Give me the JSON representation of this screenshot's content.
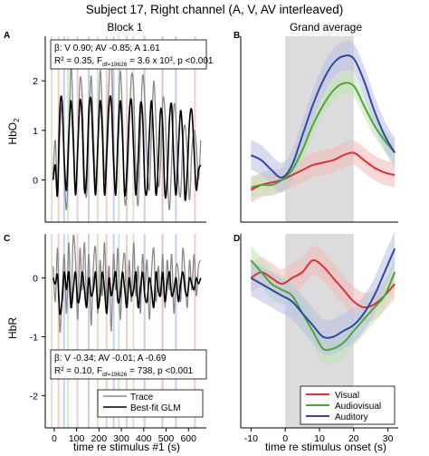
{
  "figure": {
    "title": "Subject 17, Right channel (A, V, AV interleaved)"
  },
  "colors": {
    "visual": "#e03030",
    "audiovisual": "#4aa832",
    "auditory": "#2a4aa8",
    "trace": "#8a8a8a",
    "fit": "#000000",
    "shade_visual": "#f4b8b8",
    "shade_audiovisual": "#bfe3b4",
    "shade_auditory": "#b9bfe6",
    "stim_window": "#dcdcdc"
  },
  "chart_data": [
    {
      "panel": "A",
      "type": "line",
      "title": "Block 1",
      "ylabel": "HbO",
      "ylabel_sub": "2",
      "xlim": [
        -40,
        680
      ],
      "ylim": [
        -0.85,
        2.9
      ],
      "yticks": [
        0,
        1,
        2
      ],
      "stimulus_onsets": {
        "audiovisual": [
          -15,
          58,
          190,
          285,
          350,
          480
        ],
        "visual": [
          15,
          100,
          230,
          320,
          480,
          625
        ],
        "auditory": [
          40,
          150,
          262,
          400,
          540
        ]
      },
      "series": [
        {
          "name": "Trace",
          "kind": "trace",
          "x": [
            -5,
            5,
            15,
            25,
            35,
            45,
            55,
            65,
            75,
            85,
            95,
            105,
            115,
            125,
            135,
            145,
            155,
            165,
            175,
            185,
            195,
            205,
            215,
            225,
            235,
            245,
            255,
            265,
            275,
            285,
            295,
            305,
            315,
            325,
            335,
            345,
            355,
            365,
            375,
            385,
            395,
            405,
            415,
            425,
            435,
            445,
            455,
            465,
            475,
            485,
            495,
            505,
            515,
            525,
            535,
            545,
            555,
            565,
            575,
            585,
            595,
            605,
            615,
            625,
            635,
            645,
            655
          ],
          "values": [
            0.1,
            0.8,
            -0.3,
            0.9,
            1.5,
            0.2,
            -0.6,
            0.6,
            2.3,
            1.2,
            -0.2,
            0.5,
            2.0,
            1.7,
            0.1,
            -0.3,
            1.1,
            2.1,
            1.0,
            -0.1,
            0.7,
            2.2,
            1.4,
            0.0,
            0.9,
            2.0,
            2.6,
            0.8,
            -0.2,
            1.1,
            2.2,
            1.3,
            -0.4,
            -0.2,
            1.0,
            2.1,
            1.8,
            0.2,
            -0.5,
            0.9,
            2.1,
            1.6,
            0.4,
            -0.2,
            1.0,
            2.0,
            1.1,
            -0.1,
            0.3,
            1.6,
            1.4,
            0.2,
            -0.6,
            0.4,
            1.5,
            1.2,
            0.0,
            -0.3,
            0.8,
            1.1,
            0.5,
            -0.4,
            0.6,
            1.0,
            0.7,
            0.0,
            0.8
          ]
        },
        {
          "name": "Best-fit GLM",
          "kind": "fit",
          "x": [
            -5,
            5,
            15,
            25,
            35,
            45,
            55,
            65,
            75,
            85,
            95,
            105,
            115,
            125,
            135,
            145,
            155,
            165,
            175,
            185,
            195,
            205,
            215,
            225,
            235,
            245,
            255,
            265,
            275,
            285,
            295,
            305,
            315,
            325,
            335,
            345,
            355,
            365,
            375,
            385,
            395,
            405,
            415,
            425,
            435,
            445,
            455,
            465,
            475,
            485,
            495,
            505,
            515,
            525,
            535,
            545,
            555,
            565,
            575,
            585,
            595,
            605,
            615,
            625,
            635,
            645,
            655
          ],
          "values": [
            0.0,
            0.3,
            -0.3,
            1.4,
            1.6,
            0.4,
            -0.2,
            0.9,
            1.6,
            0.8,
            -0.3,
            0.6,
            1.6,
            1.2,
            -0.2,
            0.1,
            1.4,
            1.6,
            0.5,
            -0.3,
            0.7,
            1.6,
            1.0,
            -0.3,
            0.5,
            1.5,
            1.6,
            0.4,
            -0.3,
            0.8,
            1.6,
            0.9,
            -0.3,
            0.2,
            1.3,
            1.6,
            0.6,
            -0.3,
            0.4,
            1.5,
            1.3,
            -0.1,
            -0.2,
            0.9,
            1.6,
            0.7,
            -0.3,
            0.3,
            1.4,
            1.1,
            -0.3,
            0.0,
            1.2,
            1.5,
            0.3,
            -0.3,
            0.6,
            1.4,
            0.8,
            -0.4,
            0.2,
            1.2,
            1.4,
            0.6,
            -0.2,
            0.2,
            0.3
          ]
        }
      ],
      "annotation": {
        "line1": "β: V 0.90; AV -0.85; A 1.61",
        "line2_prefix": "R² = 0.35, F",
        "line2_sub": "df=19626",
        "line2_suffix": " = 3.6 x 10³, p <0.001"
      }
    },
    {
      "panel": "B",
      "type": "line",
      "title": "Grand average",
      "xlim": [
        -13,
        33
      ],
      "ylim": [
        -0.85,
        2.9
      ],
      "stim_window": [
        0,
        20
      ],
      "series": [
        {
          "name": "Visual",
          "x": [
            -10,
            -7,
            -4,
            -1,
            2,
            5,
            8,
            11,
            14,
            17,
            20,
            23,
            26,
            29,
            32
          ],
          "values": [
            -0.2,
            -0.1,
            -0.05,
            0.0,
            0.1,
            0.2,
            0.3,
            0.35,
            0.4,
            0.5,
            0.55,
            0.4,
            0.25,
            0.15,
            0.1
          ],
          "ci": 0.25
        },
        {
          "name": "Audiovisual",
          "x": [
            -10,
            -7,
            -4,
            -1,
            2,
            5,
            8,
            11,
            14,
            17,
            20,
            23,
            26,
            29,
            32
          ],
          "values": [
            -0.15,
            -0.1,
            -0.1,
            0.0,
            0.2,
            0.6,
            1.1,
            1.5,
            1.8,
            1.95,
            1.9,
            1.5,
            1.1,
            0.8,
            0.55
          ],
          "ci": 0.22
        },
        {
          "name": "Auditory",
          "x": [
            -10,
            -7,
            -4,
            -1,
            2,
            5,
            8,
            11,
            14,
            17,
            20,
            23,
            26,
            29,
            32
          ],
          "values": [
            0.5,
            0.4,
            0.2,
            0.05,
            0.3,
            0.9,
            1.5,
            2.0,
            2.35,
            2.5,
            2.45,
            2.0,
            1.4,
            0.9,
            0.55
          ],
          "ci": 0.3
        }
      ]
    },
    {
      "panel": "C",
      "type": "line",
      "ylabel": "HbR",
      "xlabel": "time re stimulus #1 (s)",
      "xlim": [
        -40,
        680
      ],
      "ylim": [
        -2.55,
        0.75
      ],
      "xticks": [
        0,
        100,
        200,
        300,
        400,
        500,
        600
      ],
      "yticks": [
        -2,
        -1,
        0
      ],
      "stimulus_onsets": {
        "audiovisual": [
          -15,
          58,
          190,
          285,
          350,
          480
        ],
        "visual": [
          15,
          100,
          230,
          320,
          480,
          625
        ],
        "auditory": [
          40,
          150,
          262,
          400,
          540
        ]
      },
      "series": [
        {
          "name": "Trace",
          "kind": "trace",
          "x": [
            -5,
            5,
            15,
            25,
            35,
            45,
            55,
            65,
            75,
            85,
            95,
            105,
            115,
            125,
            135,
            145,
            155,
            165,
            175,
            185,
            195,
            205,
            215,
            225,
            235,
            245,
            255,
            265,
            275,
            285,
            295,
            305,
            315,
            325,
            335,
            345,
            355,
            365,
            375,
            385,
            395,
            405,
            415,
            425,
            435,
            445,
            455,
            465,
            475,
            485,
            495,
            505,
            515,
            525,
            535,
            545,
            555,
            565,
            575,
            585,
            595,
            605,
            615,
            625,
            635,
            645,
            655
          ],
          "values": [
            0.2,
            -0.4,
            0.5,
            -0.9,
            -0.3,
            0.4,
            -0.6,
            0.6,
            -0.5,
            0.7,
            0.3,
            -0.7,
            0.5,
            -0.2,
            0.6,
            -0.4,
            0.4,
            -0.8,
            0.2,
            0.5,
            -0.6,
            0.3,
            -0.3,
            0.6,
            -0.5,
            0.2,
            -0.9,
            0.4,
            -0.2,
            0.5,
            -0.7,
            0.1,
            0.4,
            -0.5,
            0.3,
            -0.4,
            0.6,
            -0.3,
            0.2,
            -0.6,
            0.4,
            -0.2,
            0.3,
            -0.7,
            0.1,
            0.5,
            -0.4,
            0.2,
            -0.3,
            0.4,
            -0.5,
            0.3,
            -0.2,
            0.4,
            -0.6,
            0.2,
            0.1,
            -0.4,
            0.5,
            0.0,
            -0.5,
            0.3,
            -0.2,
            0.4,
            -0.3,
            0.2,
            0.3
          ]
        },
        {
          "name": "Best-fit GLM",
          "kind": "fit",
          "x": [
            -5,
            5,
            15,
            25,
            35,
            45,
            55,
            65,
            75,
            85,
            95,
            105,
            115,
            125,
            135,
            145,
            155,
            165,
            175,
            185,
            195,
            205,
            215,
            225,
            235,
            245,
            255,
            265,
            275,
            285,
            295,
            305,
            315,
            325,
            335,
            345,
            355,
            365,
            375,
            385,
            395,
            405,
            415,
            425,
            435,
            445,
            455,
            465,
            475,
            485,
            495,
            505,
            515,
            525,
            535,
            545,
            555,
            565,
            575,
            585,
            595,
            605,
            615,
            625,
            635,
            645,
            655
          ],
          "values": [
            0.0,
            -0.1,
            0.05,
            -0.6,
            -0.4,
            0.1,
            -0.2,
            0.1,
            -0.5,
            -0.2,
            0.1,
            -0.4,
            -0.3,
            0.1,
            -0.2,
            -0.5,
            0.0,
            -0.3,
            -0.2,
            0.1,
            -0.5,
            -0.3,
            0.1,
            -0.2,
            -0.6,
            0.0,
            -0.3,
            -0.1,
            0.1,
            -0.4,
            -0.3,
            0.1,
            -0.2,
            -0.5,
            0.0,
            -0.3,
            -0.2,
            0.1,
            -0.5,
            -0.2,
            0.1,
            -0.3,
            -0.4,
            0.0,
            -0.2,
            -0.5,
            0.1,
            -0.2,
            -0.3,
            0.1,
            -0.4,
            -0.1,
            0.1,
            -0.3,
            -0.2,
            0.0,
            -0.4,
            -0.1,
            0.1,
            -0.2,
            -0.3,
            0.0,
            -0.1,
            -0.2,
            0.0,
            -0.1,
            0.0
          ]
        }
      ],
      "annotation": {
        "line1": "β: V -0.34; AV -0.01; A -0.69",
        "line2_prefix": "R² = 0.10, F",
        "line2_sub": "df=19626",
        "line2_suffix": " = 738, p <0.001"
      },
      "legend": {
        "placement": "bottom-right",
        "entries": [
          "Trace",
          "Best-fit GLM"
        ]
      }
    },
    {
      "panel": "D",
      "type": "line",
      "xlabel": "time re stimulus onset (s)",
      "xlim": [
        -13,
        33
      ],
      "ylim": [
        -2.55,
        0.75
      ],
      "xticks": [
        -10,
        0,
        10,
        20,
        30
      ],
      "stim_window": [
        0,
        20
      ],
      "series": [
        {
          "name": "Visual",
          "x": [
            -10,
            -7,
            -4,
            -1,
            2,
            5,
            8,
            11,
            14,
            17,
            20,
            23,
            26,
            29,
            32
          ],
          "values": [
            0.0,
            0.1,
            0.0,
            -0.1,
            0.0,
            0.1,
            0.3,
            0.2,
            0.0,
            -0.2,
            -0.4,
            -0.5,
            -0.45,
            -0.3,
            -0.1
          ],
          "ci": 0.25
        },
        {
          "name": "Audiovisual",
          "x": [
            -10,
            -7,
            -4,
            -1,
            2,
            5,
            8,
            11,
            14,
            17,
            20,
            23,
            26,
            29,
            32
          ],
          "values": [
            0.3,
            0.1,
            -0.1,
            -0.2,
            -0.3,
            -0.6,
            -0.9,
            -1.2,
            -1.2,
            -1.1,
            -0.9,
            -0.7,
            -0.5,
            -0.3,
            0.1
          ],
          "ci": 0.25
        },
        {
          "name": "Auditory",
          "x": [
            -10,
            -7,
            -4,
            -1,
            2,
            5,
            8,
            11,
            14,
            17,
            20,
            23,
            26,
            29,
            32
          ],
          "values": [
            0.0,
            -0.1,
            -0.2,
            -0.3,
            -0.4,
            -0.6,
            -0.8,
            -1.0,
            -1.0,
            -0.9,
            -0.8,
            -0.6,
            -0.3,
            0.1,
            0.5
          ],
          "ci": 0.3
        }
      ],
      "legend": {
        "placement": "bottom-right",
        "entries": [
          "Visual",
          "Audiovisual",
          "Auditory"
        ]
      }
    }
  ]
}
